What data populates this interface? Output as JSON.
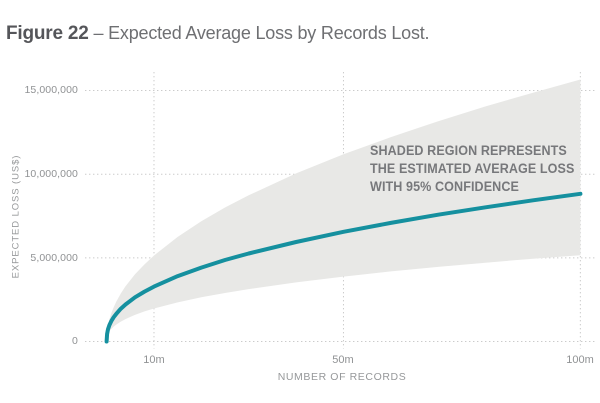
{
  "figure": {
    "label": "Figure 22",
    "title_rest": "– Expected Average Loss by Records Lost."
  },
  "chart_data": {
    "type": "line",
    "title": "Expected Average Loss by Records Lost",
    "xlabel": "NUMBER OF RECORDS",
    "ylabel": "EXPECTED LOSS (US$)",
    "xlim_millions": [
      0,
      100
    ],
    "ylim_usd": [
      0,
      16000000
    ],
    "grid": "dotted",
    "legend": "none",
    "annotation": {
      "lines": [
        "SHADED REGION REPRESENTS",
        "THE ESTIMATED AVERAGE LOSS",
        "WITH 95% CONFIDENCE"
      ],
      "position": "inside band, upper right"
    },
    "x_ticks": [
      {
        "value_millions": 10,
        "label": "10m"
      },
      {
        "value_millions": 50,
        "label": "50m"
      },
      {
        "value_millions": 100,
        "label": "100m"
      }
    ],
    "y_ticks": [
      {
        "value_usd": 0,
        "label": "0"
      },
      {
        "value_usd": 5000000,
        "label": "5,000,000"
      },
      {
        "value_usd": 10000000,
        "label": "10,000,000"
      },
      {
        "value_usd": 15000000,
        "label": "15,000,000"
      }
    ],
    "x_records_millions": [
      0,
      0.1,
      0.3,
      0.6,
      1,
      1.5,
      2,
      3,
      4,
      6,
      8,
      10,
      15,
      20,
      25,
      30,
      40,
      50,
      60,
      70,
      80,
      90,
      100
    ],
    "series": [
      {
        "name": "Expected average loss",
        "role": "mean",
        "color": "#15909F",
        "values_usd": [
          0,
          450000,
          730000,
          980000,
          1220000,
          1450000,
          1640000,
          1960000,
          2210000,
          2640000,
          2980000,
          3280000,
          3910000,
          4420000,
          4870000,
          5260000,
          5950000,
          6560000,
          7090000,
          7580000,
          8020000,
          8440000,
          8830000
        ]
      },
      {
        "name": "Upper 95% confidence bound",
        "role": "band-upper",
        "color": "#E8E8E6",
        "values_usd": [
          0,
          550000,
          940000,
          1320000,
          1690000,
          2050000,
          2360000,
          2870000,
          3300000,
          4020000,
          4610000,
          5140000,
          6250000,
          7190000,
          8010000,
          8740000,
          10050000,
          11190000,
          12220000,
          13170000,
          14050000,
          14870000,
          15660000
        ]
      },
      {
        "name": "Lower 95% confidence bound",
        "role": "band-lower",
        "color": "#E8E8E6",
        "values_usd": [
          0,
          290000,
          450000,
          610000,
          750000,
          890000,
          1000000,
          1190000,
          1340000,
          1590000,
          1800000,
          1970000,
          2340000,
          2640000,
          2900000,
          3130000,
          3530000,
          3880000,
          4190000,
          4460000,
          4710000,
          4950000,
          5160000
        ]
      }
    ],
    "band_color": "#E8E8E6"
  },
  "colors": {
    "background": "#FFFFFF",
    "title_label": "#55565A",
    "title_text": "#6E6F72",
    "axis_text": "#909294",
    "annotation_text": "#77787B",
    "gridline": "#CBCBCB",
    "line": "#15909F",
    "band": "#E8E8E6"
  }
}
